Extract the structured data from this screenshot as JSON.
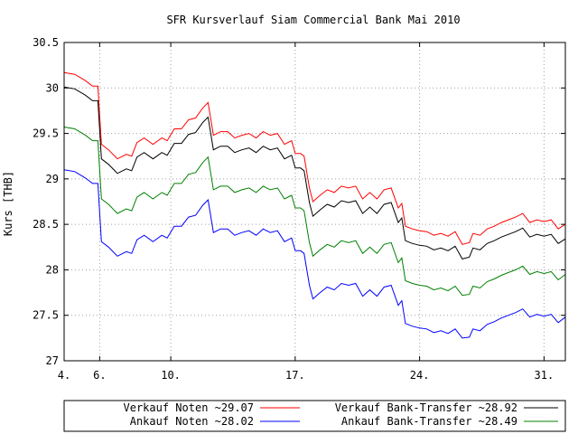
{
  "chart_data": {
    "type": "line",
    "title": "SFR Kursverlauf Siam Commercial Bank Mai 2010",
    "ylabel": "Kurs [THB]",
    "xlabel": "",
    "ylim": [
      27,
      30.5
    ],
    "y_ticks": [
      "30.5",
      "30",
      "29.5",
      "29",
      "28.5",
      "28",
      "27.5",
      "27"
    ],
    "x_ticks": [
      {
        "day": 4,
        "label": "4."
      },
      {
        "day": 6,
        "label": "6."
      },
      {
        "day": 10,
        "label": "10."
      },
      {
        "day": 17,
        "label": "17."
      },
      {
        "day": 24,
        "label": "24."
      },
      {
        "day": 31,
        "label": "31."
      }
    ],
    "xlim": [
      4,
      32.2
    ],
    "grid": true,
    "legend_position": "bottom",
    "series": [
      {
        "name": "Verkauf Noten ~29.07",
        "color": "#ff0000",
        "points": [
          [
            4,
            30.17
          ],
          [
            4.6,
            30.15
          ],
          [
            5.2,
            30.08
          ],
          [
            5.6,
            30.02
          ],
          [
            5.9,
            30.02
          ],
          [
            6.1,
            29.38
          ],
          [
            6.5,
            29.32
          ],
          [
            7.0,
            29.22
          ],
          [
            7.5,
            29.27
          ],
          [
            7.8,
            29.25
          ],
          [
            8.1,
            29.4
          ],
          [
            8.5,
            29.45
          ],
          [
            9.0,
            29.38
          ],
          [
            9.5,
            29.45
          ],
          [
            9.8,
            29.42
          ],
          [
            10.2,
            29.55
          ],
          [
            10.6,
            29.55
          ],
          [
            11.0,
            29.65
          ],
          [
            11.4,
            29.67
          ],
          [
            11.8,
            29.78
          ],
          [
            12.1,
            29.84
          ],
          [
            12.4,
            29.48
          ],
          [
            12.8,
            29.52
          ],
          [
            13.2,
            29.52
          ],
          [
            13.6,
            29.45
          ],
          [
            14.0,
            29.48
          ],
          [
            14.4,
            29.5
          ],
          [
            14.8,
            29.45
          ],
          [
            15.2,
            29.52
          ],
          [
            15.6,
            29.48
          ],
          [
            16.0,
            29.5
          ],
          [
            16.4,
            29.38
          ],
          [
            16.8,
            29.42
          ],
          [
            17.0,
            29.28
          ],
          [
            17.3,
            29.28
          ],
          [
            17.5,
            29.25
          ],
          [
            17.8,
            28.9
          ],
          [
            18.0,
            28.75
          ],
          [
            18.4,
            28.82
          ],
          [
            18.8,
            28.88
          ],
          [
            19.2,
            28.85
          ],
          [
            19.6,
            28.92
          ],
          [
            20.0,
            28.9
          ],
          [
            20.4,
            28.92
          ],
          [
            20.8,
            28.78
          ],
          [
            21.2,
            28.85
          ],
          [
            21.6,
            28.78
          ],
          [
            22.0,
            28.88
          ],
          [
            22.4,
            28.9
          ],
          [
            22.8,
            28.68
          ],
          [
            23.0,
            28.73
          ],
          [
            23.2,
            28.48
          ],
          [
            23.6,
            28.45
          ],
          [
            24.0,
            28.43
          ],
          [
            24.4,
            28.42
          ],
          [
            24.8,
            28.38
          ],
          [
            25.2,
            28.4
          ],
          [
            25.6,
            28.37
          ],
          [
            26.0,
            28.42
          ],
          [
            26.4,
            28.28
          ],
          [
            26.8,
            28.3
          ],
          [
            27.0,
            28.4
          ],
          [
            27.4,
            28.38
          ],
          [
            27.8,
            28.45
          ],
          [
            28.2,
            28.48
          ],
          [
            28.6,
            28.52
          ],
          [
            29.0,
            28.55
          ],
          [
            29.4,
            28.58
          ],
          [
            29.8,
            28.62
          ],
          [
            30.2,
            28.52
          ],
          [
            30.6,
            28.55
          ],
          [
            31.0,
            28.53
          ],
          [
            31.4,
            28.55
          ],
          [
            31.8,
            28.45
          ],
          [
            32.2,
            28.5
          ]
        ]
      },
      {
        "name": "Verkauf Bank-Transfer ~28.92",
        "color": "#000000",
        "points": [
          [
            4,
            30.01
          ],
          [
            4.6,
            29.99
          ],
          [
            5.2,
            29.92
          ],
          [
            5.6,
            29.86
          ],
          [
            5.9,
            29.86
          ],
          [
            6.1,
            29.22
          ],
          [
            6.5,
            29.16
          ],
          [
            7.0,
            29.06
          ],
          [
            7.5,
            29.11
          ],
          [
            7.8,
            29.09
          ],
          [
            8.1,
            29.24
          ],
          [
            8.5,
            29.29
          ],
          [
            9.0,
            29.22
          ],
          [
            9.5,
            29.29
          ],
          [
            9.8,
            29.26
          ],
          [
            10.2,
            29.39
          ],
          [
            10.6,
            29.39
          ],
          [
            11.0,
            29.49
          ],
          [
            11.4,
            29.51
          ],
          [
            11.8,
            29.62
          ],
          [
            12.1,
            29.68
          ],
          [
            12.4,
            29.32
          ],
          [
            12.8,
            29.36
          ],
          [
            13.2,
            29.36
          ],
          [
            13.6,
            29.29
          ],
          [
            14.0,
            29.32
          ],
          [
            14.4,
            29.34
          ],
          [
            14.8,
            29.29
          ],
          [
            15.2,
            29.36
          ],
          [
            15.6,
            29.32
          ],
          [
            16.0,
            29.34
          ],
          [
            16.4,
            29.22
          ],
          [
            16.8,
            29.26
          ],
          [
            17.0,
            29.12
          ],
          [
            17.3,
            29.12
          ],
          [
            17.5,
            29.09
          ],
          [
            17.8,
            28.74
          ],
          [
            18.0,
            28.59
          ],
          [
            18.4,
            28.66
          ],
          [
            18.8,
            28.72
          ],
          [
            19.2,
            28.69
          ],
          [
            19.6,
            28.76
          ],
          [
            20.0,
            28.74
          ],
          [
            20.4,
            28.76
          ],
          [
            20.8,
            28.62
          ],
          [
            21.2,
            28.69
          ],
          [
            21.6,
            28.62
          ],
          [
            22.0,
            28.72
          ],
          [
            22.4,
            28.74
          ],
          [
            22.8,
            28.52
          ],
          [
            23.0,
            28.57
          ],
          [
            23.2,
            28.32
          ],
          [
            23.6,
            28.29
          ],
          [
            24.0,
            28.27
          ],
          [
            24.4,
            28.26
          ],
          [
            24.8,
            28.22
          ],
          [
            25.2,
            28.24
          ],
          [
            25.6,
            28.21
          ],
          [
            26.0,
            28.26
          ],
          [
            26.4,
            28.12
          ],
          [
            26.8,
            28.14
          ],
          [
            27.0,
            28.24
          ],
          [
            27.4,
            28.22
          ],
          [
            27.8,
            28.29
          ],
          [
            28.2,
            28.32
          ],
          [
            28.6,
            28.36
          ],
          [
            29.0,
            28.39
          ],
          [
            29.4,
            28.42
          ],
          [
            29.8,
            28.46
          ],
          [
            30.2,
            28.36
          ],
          [
            30.6,
            28.39
          ],
          [
            31.0,
            28.37
          ],
          [
            31.4,
            28.39
          ],
          [
            31.8,
            28.29
          ],
          [
            32.2,
            28.34
          ]
        ]
      },
      {
        "name": "Ankauf Noten ~28.02",
        "color": "#0000ff",
        "points": [
          [
            4,
            29.1
          ],
          [
            4.6,
            29.08
          ],
          [
            5.2,
            29.01
          ],
          [
            5.6,
            28.95
          ],
          [
            5.9,
            28.95
          ],
          [
            6.1,
            28.31
          ],
          [
            6.5,
            28.25
          ],
          [
            7.0,
            28.15
          ],
          [
            7.5,
            28.2
          ],
          [
            7.8,
            28.18
          ],
          [
            8.1,
            28.33
          ],
          [
            8.5,
            28.38
          ],
          [
            9.0,
            28.31
          ],
          [
            9.5,
            28.38
          ],
          [
            9.8,
            28.35
          ],
          [
            10.2,
            28.48
          ],
          [
            10.6,
            28.48
          ],
          [
            11.0,
            28.58
          ],
          [
            11.4,
            28.6
          ],
          [
            11.8,
            28.71
          ],
          [
            12.1,
            28.77
          ],
          [
            12.4,
            28.41
          ],
          [
            12.8,
            28.45
          ],
          [
            13.2,
            28.45
          ],
          [
            13.6,
            28.38
          ],
          [
            14.0,
            28.41
          ],
          [
            14.4,
            28.43
          ],
          [
            14.8,
            28.38
          ],
          [
            15.2,
            28.45
          ],
          [
            15.6,
            28.41
          ],
          [
            16.0,
            28.43
          ],
          [
            16.4,
            28.31
          ],
          [
            16.8,
            28.35
          ],
          [
            17.0,
            28.21
          ],
          [
            17.3,
            28.21
          ],
          [
            17.5,
            28.18
          ],
          [
            17.8,
            27.83
          ],
          [
            18.0,
            27.68
          ],
          [
            18.4,
            27.75
          ],
          [
            18.8,
            27.81
          ],
          [
            19.2,
            27.78
          ],
          [
            19.6,
            27.85
          ],
          [
            20.0,
            27.83
          ],
          [
            20.4,
            27.85
          ],
          [
            20.8,
            27.71
          ],
          [
            21.2,
            27.78
          ],
          [
            21.6,
            27.71
          ],
          [
            22.0,
            27.81
          ],
          [
            22.4,
            27.83
          ],
          [
            22.8,
            27.61
          ],
          [
            23.0,
            27.66
          ],
          [
            23.2,
            27.41
          ],
          [
            23.6,
            27.38
          ],
          [
            24.0,
            27.36
          ],
          [
            24.4,
            27.35
          ],
          [
            24.8,
            27.31
          ],
          [
            25.2,
            27.33
          ],
          [
            25.6,
            27.3
          ],
          [
            26.0,
            27.35
          ],
          [
            26.4,
            27.25
          ],
          [
            26.8,
            27.26
          ],
          [
            27.0,
            27.35
          ],
          [
            27.4,
            27.33
          ],
          [
            27.8,
            27.4
          ],
          [
            28.2,
            27.43
          ],
          [
            28.6,
            27.47
          ],
          [
            29.0,
            27.5
          ],
          [
            29.4,
            27.53
          ],
          [
            29.8,
            27.57
          ],
          [
            30.2,
            27.48
          ],
          [
            30.6,
            27.51
          ],
          [
            31.0,
            27.49
          ],
          [
            31.4,
            27.51
          ],
          [
            31.8,
            27.42
          ],
          [
            32.2,
            27.48
          ]
        ]
      },
      {
        "name": "Ankauf Bank-Transfer ~28.49",
        "color": "#008000",
        "points": [
          [
            4,
            29.57
          ],
          [
            4.6,
            29.55
          ],
          [
            5.2,
            29.48
          ],
          [
            5.6,
            29.42
          ],
          [
            5.9,
            29.42
          ],
          [
            6.1,
            28.78
          ],
          [
            6.5,
            28.72
          ],
          [
            7.0,
            28.62
          ],
          [
            7.5,
            28.67
          ],
          [
            7.8,
            28.65
          ],
          [
            8.1,
            28.8
          ],
          [
            8.5,
            28.85
          ],
          [
            9.0,
            28.78
          ],
          [
            9.5,
            28.85
          ],
          [
            9.8,
            28.82
          ],
          [
            10.2,
            28.95
          ],
          [
            10.6,
            28.95
          ],
          [
            11.0,
            29.05
          ],
          [
            11.4,
            29.07
          ],
          [
            11.8,
            29.18
          ],
          [
            12.1,
            29.24
          ],
          [
            12.4,
            28.88
          ],
          [
            12.8,
            28.92
          ],
          [
            13.2,
            28.92
          ],
          [
            13.6,
            28.85
          ],
          [
            14.0,
            28.88
          ],
          [
            14.4,
            28.9
          ],
          [
            14.8,
            28.85
          ],
          [
            15.2,
            28.92
          ],
          [
            15.6,
            28.88
          ],
          [
            16.0,
            28.9
          ],
          [
            16.4,
            28.78
          ],
          [
            16.8,
            28.82
          ],
          [
            17.0,
            28.68
          ],
          [
            17.3,
            28.68
          ],
          [
            17.5,
            28.65
          ],
          [
            17.8,
            28.3
          ],
          [
            18.0,
            28.15
          ],
          [
            18.4,
            28.22
          ],
          [
            18.8,
            28.28
          ],
          [
            19.2,
            28.25
          ],
          [
            19.6,
            28.32
          ],
          [
            20.0,
            28.3
          ],
          [
            20.4,
            28.32
          ],
          [
            20.8,
            28.18
          ],
          [
            21.2,
            28.25
          ],
          [
            21.6,
            28.18
          ],
          [
            22.0,
            28.28
          ],
          [
            22.4,
            28.3
          ],
          [
            22.8,
            28.08
          ],
          [
            23.0,
            28.13
          ],
          [
            23.2,
            27.88
          ],
          [
            23.6,
            27.85
          ],
          [
            24.0,
            27.83
          ],
          [
            24.4,
            27.82
          ],
          [
            24.8,
            27.78
          ],
          [
            25.2,
            27.8
          ],
          [
            25.6,
            27.77
          ],
          [
            26.0,
            27.82
          ],
          [
            26.4,
            27.72
          ],
          [
            26.8,
            27.73
          ],
          [
            27.0,
            27.82
          ],
          [
            27.4,
            27.8
          ],
          [
            27.8,
            27.87
          ],
          [
            28.2,
            27.9
          ],
          [
            28.6,
            27.94
          ],
          [
            29.0,
            27.97
          ],
          [
            29.4,
            28.0
          ],
          [
            29.8,
            28.04
          ],
          [
            30.2,
            27.95
          ],
          [
            30.6,
            27.98
          ],
          [
            31.0,
            27.96
          ],
          [
            31.4,
            27.98
          ],
          [
            31.8,
            27.89
          ],
          [
            32.2,
            27.95
          ]
        ]
      }
    ],
    "legend": [
      {
        "label": "Verkauf Noten ~29.07",
        "color": "#ff0000"
      },
      {
        "label": "Verkauf Bank-Transfer ~28.92",
        "color": "#000000"
      },
      {
        "label": "Ankauf Noten ~28.02",
        "color": "#0000ff"
      },
      {
        "label": "Ankauf Bank-Transfer ~28.49",
        "color": "#008000"
      }
    ]
  }
}
